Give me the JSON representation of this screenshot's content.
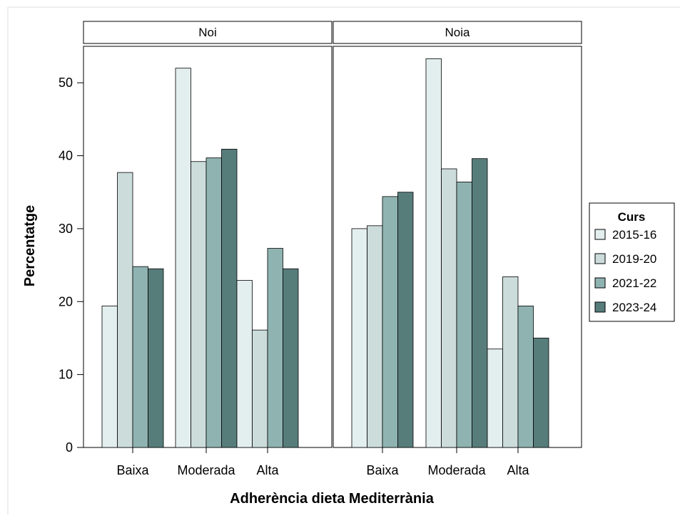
{
  "chart_data": {
    "type": "bar",
    "xlabel": "Adherència dieta Mediterrània",
    "ylabel": "Percentatge",
    "ylim": [
      0,
      55
    ],
    "yticks": [
      0,
      10,
      20,
      30,
      40,
      50
    ],
    "categories": [
      "Baixa",
      "Moderada",
      "Alta"
    ],
    "legend": {
      "title": "Curs",
      "position": "right"
    },
    "colors": [
      "#e3eeee",
      "#cbdcdb",
      "#8fb3b1",
      "#577d7b"
    ],
    "panels": [
      {
        "title": "Noi",
        "series": [
          {
            "name": "2015-16",
            "values": [
              19.4,
              52.0,
              22.9
            ]
          },
          {
            "name": "2019-20",
            "values": [
              37.7,
              39.2,
              16.1
            ]
          },
          {
            "name": "2021-22",
            "values": [
              24.8,
              39.7,
              27.3
            ]
          },
          {
            "name": "2023-24",
            "values": [
              24.5,
              40.9,
              24.5
            ]
          }
        ]
      },
      {
        "title": "Noia",
        "series": [
          {
            "name": "2015-16",
            "values": [
              30.0,
              53.3,
              13.5
            ]
          },
          {
            "name": "2019-20",
            "values": [
              30.4,
              38.2,
              23.4
            ]
          },
          {
            "name": "2021-22",
            "values": [
              34.4,
              36.4,
              19.4
            ]
          },
          {
            "name": "2023-24",
            "values": [
              35.0,
              39.6,
              15.0
            ]
          }
        ]
      }
    ]
  }
}
